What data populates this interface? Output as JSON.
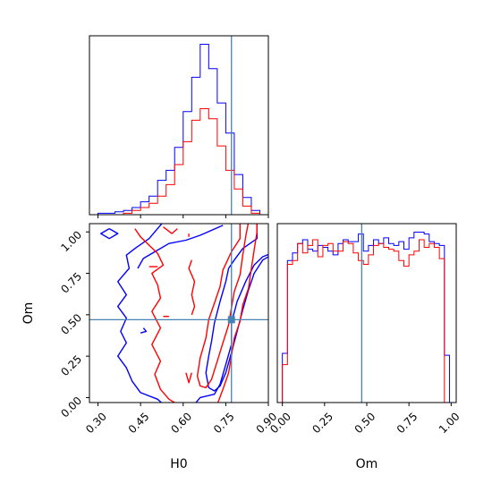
{
  "chart_data": {
    "type": "corner",
    "parameters": [
      "H0",
      "Om"
    ],
    "truths": {
      "H0": 0.77,
      "Om": 0.47
    },
    "truth_color": "#4682b4",
    "series": [
      {
        "color": "#0000ff"
      },
      {
        "color": "#ff0000"
      }
    ],
    "panels": {
      "h0_hist": {
        "xlim": [
          0.27,
          0.9
        ],
        "bins": [
          0.27,
          0.3,
          0.33,
          0.36,
          0.39,
          0.42,
          0.45,
          0.48,
          0.51,
          0.54,
          0.57,
          0.6,
          0.63,
          0.66,
          0.69,
          0.72,
          0.75,
          0.78,
          0.81,
          0.84,
          0.87,
          0.9
        ],
        "blue": [
          0,
          1,
          1,
          2,
          3,
          5,
          9,
          13,
          24,
          31,
          47,
          72,
          96,
          119,
          102,
          78,
          57,
          28,
          12,
          3,
          0
        ],
        "red": [
          0,
          0,
          0,
          0,
          1,
          3,
          5,
          8,
          13,
          21,
          35,
          51,
          66,
          74,
          67,
          48,
          31,
          18,
          6,
          1,
          0
        ]
      },
      "om_hist": {
        "xlim": [
          -0.03,
          1.03
        ],
        "bins": [
          -0.03,
          0.0,
          0.03,
          0.06,
          0.09,
          0.12,
          0.15,
          0.18,
          0.21,
          0.24,
          0.27,
          0.3,
          0.33,
          0.36,
          0.39,
          0.42,
          0.45,
          0.48,
          0.51,
          0.54,
          0.57,
          0.6,
          0.63,
          0.66,
          0.69,
          0.72,
          0.75,
          0.78,
          0.81,
          0.84,
          0.87,
          0.9,
          0.93,
          0.96,
          0.99,
          1.02
        ],
        "blue": [
          0,
          26,
          75,
          79,
          84,
          86,
          81,
          80,
          83,
          82,
          80,
          78,
          84,
          86,
          85,
          85,
          89,
          80,
          83,
          86,
          84,
          87,
          84,
          83,
          85,
          81,
          87,
          90,
          90,
          89,
          85,
          84,
          83,
          25,
          0
        ],
        "red": [
          0,
          20,
          73,
          75,
          84,
          79,
          83,
          86,
          77,
          83,
          84,
          80,
          80,
          85,
          84,
          79,
          75,
          73,
          78,
          83,
          84,
          82,
          81,
          80,
          75,
          72,
          78,
          80,
          86,
          82,
          84,
          82,
          76,
          0,
          0
        ]
      },
      "joint": {
        "xlim": [
          0.27,
          0.9
        ],
        "ylim": [
          -0.03,
          1.05
        ],
        "xticks": [
          "0.30",
          "0.45",
          "0.60",
          "0.75",
          "0.90"
        ],
        "yticks": [
          "0.00",
          "0.25",
          "0.50",
          "0.75",
          "1.00"
        ],
        "om_ticks": [
          "0.00",
          "0.25",
          "0.50",
          "0.75",
          "1.00"
        ],
        "xlabel": "H0",
        "ylabel": "Om",
        "om_xlabel": "Om"
      }
    }
  }
}
